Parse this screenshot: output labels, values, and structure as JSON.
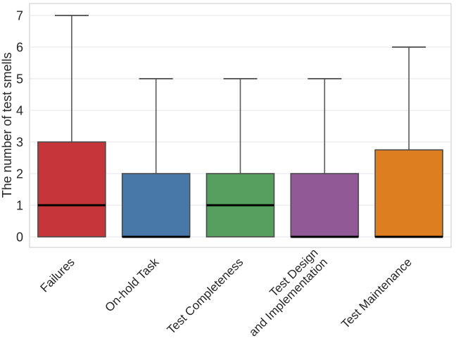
{
  "figure": {
    "background": "#ffffff",
    "grid_color": "#e4e4e9",
    "spine_color": "#c9c9ce",
    "tick_color": "#262626"
  },
  "chart_data": {
    "type": "box",
    "title": "",
    "xlabel": "",
    "ylabel": "The number of test smells",
    "ylim": [
      -0.33,
      7.38
    ],
    "yticks": [
      0,
      1,
      2,
      3,
      4,
      5,
      6,
      7
    ],
    "grid": "horizontal",
    "legend": "none",
    "categories": [
      "Failures",
      "On-hold Task",
      "Test Completeness",
      "Test Design\nand Implementation",
      "Test Maintenance"
    ],
    "series": [
      {
        "label": "Failures",
        "whislo": 0,
        "q1": 0,
        "med": 1,
        "q3": 3,
        "whishi": 7,
        "color": "#c63638"
      },
      {
        "label": "On-hold Task",
        "whislo": 0,
        "q1": 0,
        "med": 0,
        "q3": 2,
        "whishi": 5,
        "color": "#4878a8"
      },
      {
        "label": "Test Completeness",
        "whislo": 0,
        "q1": 0,
        "med": 1,
        "q3": 2,
        "whishi": 5,
        "color": "#55a05e"
      },
      {
        "label": "Test Design and Implementation",
        "whislo": 0,
        "q1": 0,
        "med": 0,
        "q3": 2,
        "whishi": 5,
        "color": "#915a96"
      },
      {
        "label": "Test Maintenance",
        "whislo": 0,
        "q1": 0,
        "med": 0,
        "q3": 2.75,
        "whishi": 6,
        "color": "#dd7e20"
      }
    ],
    "styles": {
      "box_edge": "#4a4a4a",
      "whisker": "#595959",
      "median": "#000000"
    }
  }
}
